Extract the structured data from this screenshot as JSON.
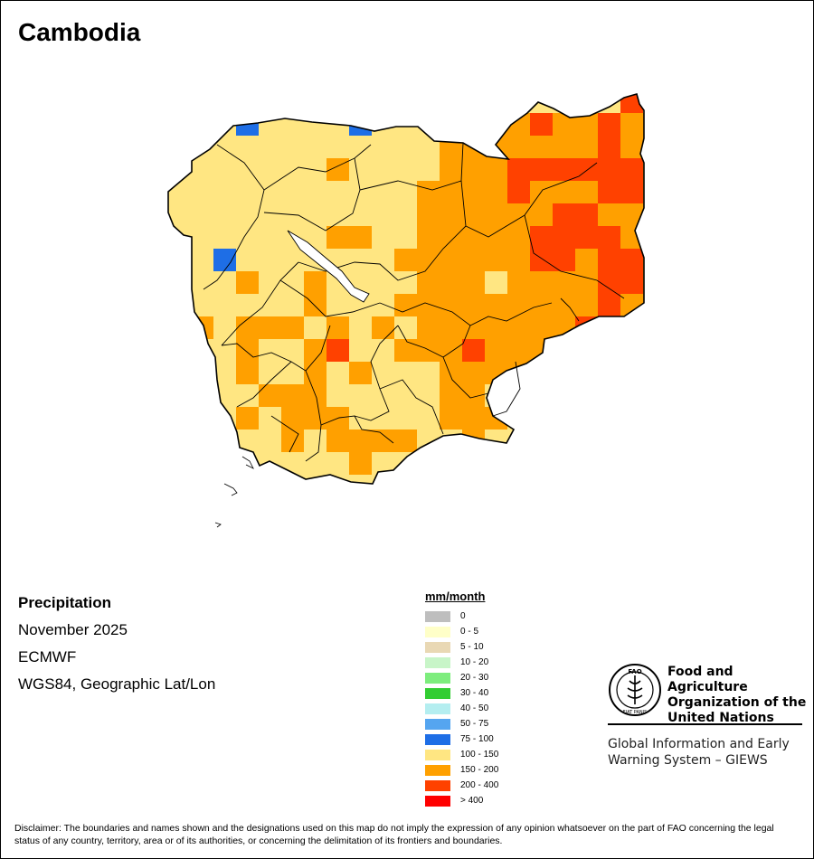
{
  "title": "Cambodia",
  "info": {
    "variable": "Precipitation",
    "period": "November 2025",
    "source": "ECMWF",
    "projection": "WGS84, Geographic Lat/Lon"
  },
  "legend": {
    "title": "mm/month",
    "items": [
      {
        "label": "0",
        "color": "#bebebe"
      },
      {
        "label": "0 - 5",
        "color": "#ffffc8"
      },
      {
        "label": "5 - 10",
        "color": "#e9d8b4"
      },
      {
        "label": "10 - 20",
        "color": "#c8f5c8"
      },
      {
        "label": "20 - 30",
        "color": "#7ded7d"
      },
      {
        "label": "30 - 40",
        "color": "#32cd32"
      },
      {
        "label": "40 - 50",
        "color": "#b4eef0"
      },
      {
        "label": "50 - 75",
        "color": "#55a5f0"
      },
      {
        "label": "75 - 100",
        "color": "#1e6ee6"
      },
      {
        "label": "100 - 150",
        "color": "#ffe682"
      },
      {
        "label": "150 - 200",
        "color": "#ffa000"
      },
      {
        "label": "200 - 400",
        "color": "#ff4100"
      },
      {
        "label": "> 400",
        "color": "#ff0000"
      }
    ]
  },
  "org": {
    "logo_text": "FAO",
    "logo_ring_text": "FIAT PANIS",
    "name_line1": "Food and Agriculture",
    "name_line2": "Organization of the",
    "name_line3": "United Nations",
    "system_line1": "Global Information and Early",
    "system_line2": "Warning System – GIEWS"
  },
  "disclaimer": "Disclaimer: The boundaries and names shown and the designations used on this map do not imply the expression of any opinion whatsoever on the part of FAO concerning the legal status of any country, territory, area or of its authorities, or concerning the delimitation of its frontiers and boundaries."
}
